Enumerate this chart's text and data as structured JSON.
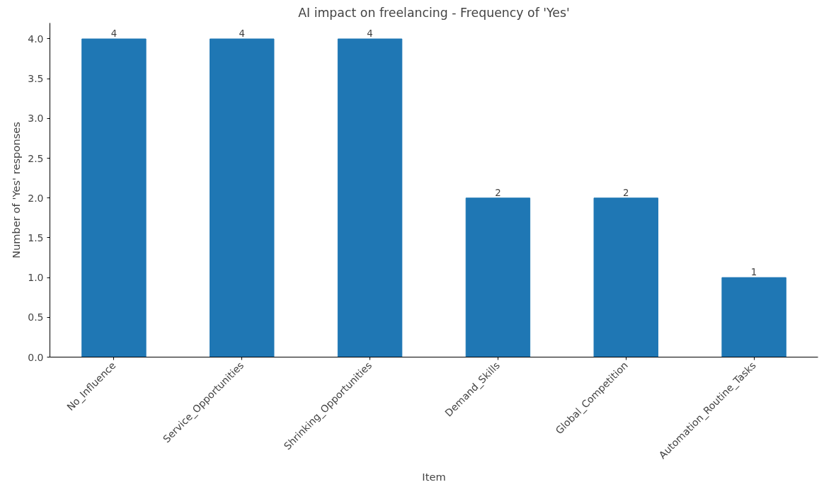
{
  "chart_data": {
    "type": "bar",
    "title": "AI impact on freelancing - Frequency of 'Yes'",
    "xlabel": "Item",
    "ylabel": "Number of 'Yes' responses",
    "categories": [
      "No_Influence",
      "Service_Opportunities",
      "Shrinking_Opportunities",
      "Demand_Skills",
      "Global_Competition",
      "Automation_Routine_Tasks"
    ],
    "values": [
      4,
      4,
      4,
      2,
      2,
      1
    ],
    "color": "#1f77b4",
    "ylim": [
      0,
      4.2
    ],
    "yticks": [
      {
        "value": 0,
        "label": "0.0"
      },
      {
        "value": 0.5,
        "label": "0.5"
      },
      {
        "value": 1,
        "label": "1.0"
      },
      {
        "value": 1.5,
        "label": "1.5"
      },
      {
        "value": 2,
        "label": "2.0"
      },
      {
        "value": 2.5,
        "label": "2.5"
      },
      {
        "value": 3,
        "label": "3.0"
      },
      {
        "value": 3.5,
        "label": "3.5"
      },
      {
        "value": 4,
        "label": "4.0"
      }
    ],
    "data_labels": true,
    "grid": false
  }
}
